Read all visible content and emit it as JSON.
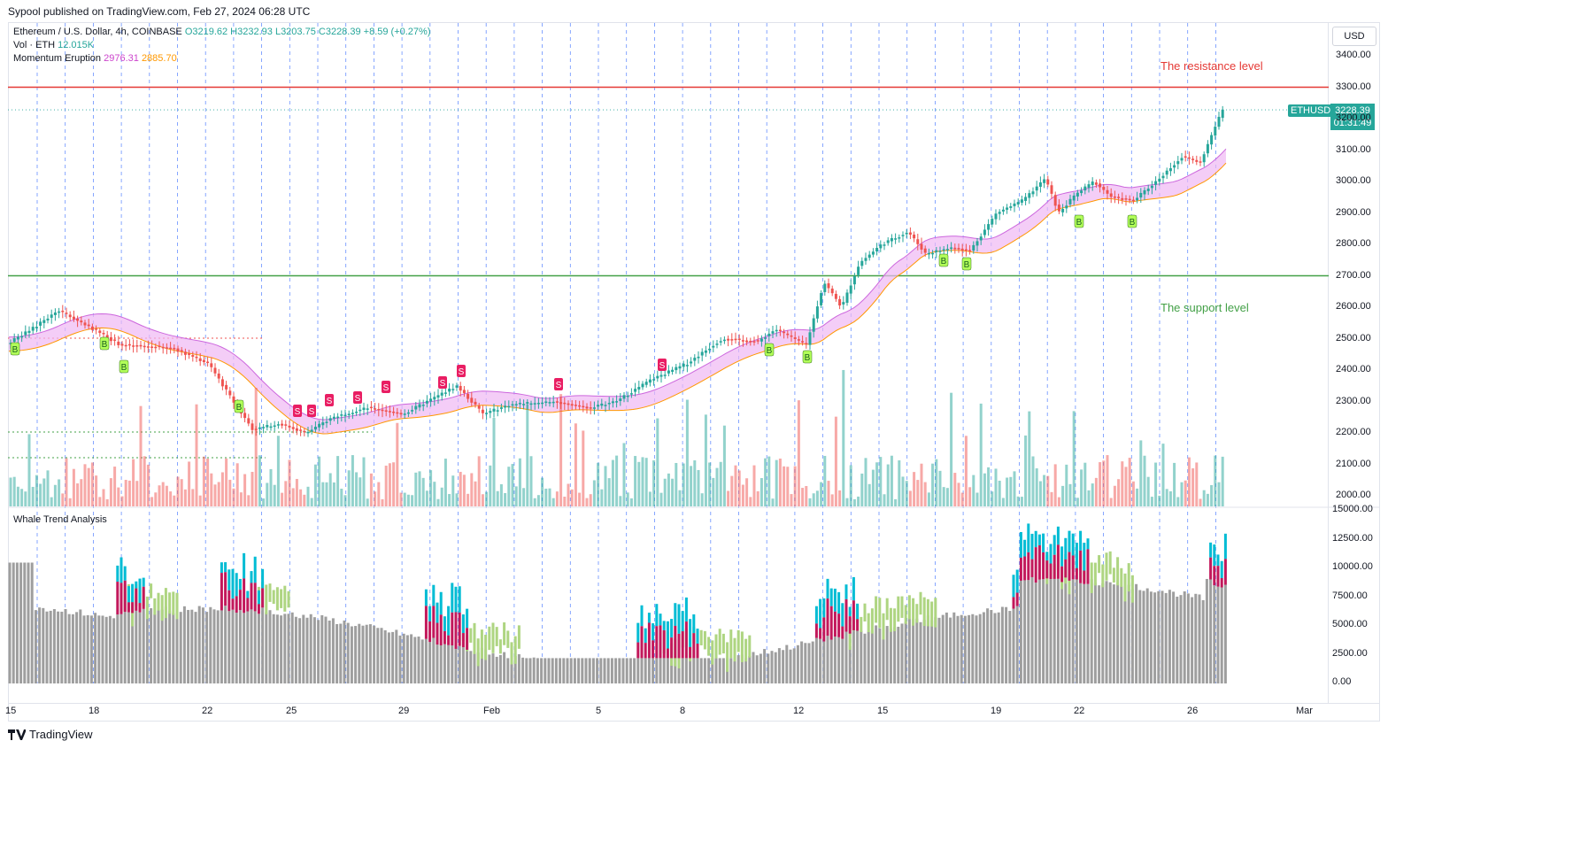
{
  "header": {
    "published": "Sypool published on TradingView.com, Feb 27, 2024 06:28 UTC"
  },
  "legend": {
    "symbol": "Ethereum / U.S. Dollar, 4h, COINBASE",
    "ohlc": "O3219.62 H3232.93 L3203.75 C3228.39 +8.59 (+0.27%)",
    "vol_label": "Vol · ETH",
    "vol_value": "12.015K",
    "indicator_name": "Momentum Eruption",
    "indicator_val1": "2976.31",
    "indicator_val2": "2885.70",
    "lower_indicator": "Whale Trend Analysis"
  },
  "price_axis": {
    "currency": "USD",
    "ticks": [
      "3400.00",
      "3300.00",
      "3200.00",
      "3100.00",
      "3000.00",
      "2900.00",
      "2800.00",
      "2700.00",
      "2600.00",
      "2500.00",
      "2400.00",
      "2300.00",
      "2200.00",
      "2100.00",
      "2000.00"
    ],
    "ticker_badge": "ETHUSD",
    "last_price": "3228.39",
    "countdown": "01:31:49"
  },
  "lower_axis": {
    "ticks": [
      "15000.00",
      "12500.00",
      "10000.00",
      "7500.00",
      "5000.00",
      "2500.00",
      "0.00"
    ]
  },
  "time_axis": {
    "ticks": [
      "15",
      "18",
      "22",
      "25",
      "29",
      "Feb",
      "5",
      "8",
      "12",
      "15",
      "19",
      "22",
      "26",
      "Mar"
    ]
  },
  "annotations": {
    "resistance": "The resistance level",
    "support": "The support level"
  },
  "signals": {
    "buy": "B",
    "sell": "S"
  },
  "colors": {
    "up": "#26a69a",
    "down": "#ef5350",
    "resistance": "#e53935",
    "support": "#43a047",
    "band_fill": "#f0b8f4",
    "band_line1": "#cc66dd",
    "band_line2": "#ff9800",
    "whale_gray": "#9e9e9e",
    "whale_red": "#c2185b",
    "whale_cyan": "#00bcd4",
    "whale_green": "#aed581"
  },
  "footer": {
    "brand": "TradingView"
  }
}
